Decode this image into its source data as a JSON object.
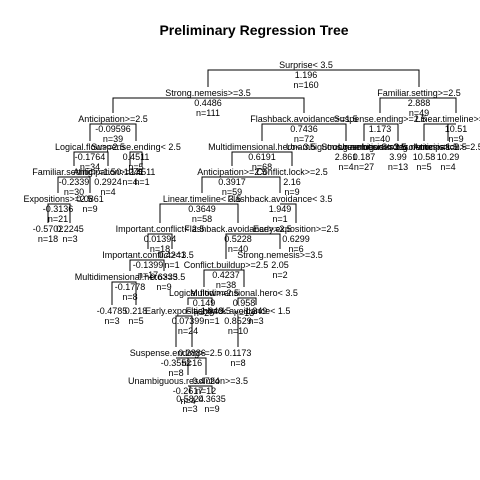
{
  "title": "Preliminary Regression Tree",
  "nodes": [
    {
      "id": "root",
      "split": "Surprise< 3.5",
      "value": "1.196",
      "n": "n=160"
    },
    {
      "id": "n_sn",
      "split": "Strong.nemesis>=3.5",
      "value": "0.4486",
      "n": "n=111"
    },
    {
      "id": "n_fam",
      "split": "Familiar.setting>=2.5",
      "value": "2.888",
      "n": "n=49"
    },
    {
      "id": "n_ant1",
      "split": "Anticipation>=2.5",
      "value": "-0.09596",
      "n": "n=39"
    },
    {
      "id": "n_fb1",
      "split": "Flashback.avoidance>=1.5",
      "value": "0.7436",
      "n": "n=72"
    },
    {
      "id": "n_fam_l",
      "split": "Suspense.ending>=2.5",
      "value": "1.173",
      "n": "n=40"
    },
    {
      "id": "n_fam_r",
      "split": "Linear.timeline>=3.5",
      "value": "10.51",
      "n": "n=9"
    },
    {
      "id": "n_a",
      "split": "Logical.flow>=2.5",
      "value": "-0.1764",
      "n": "n=34"
    },
    {
      "id": "n_b",
      "split": "Suspense.ending< 2.5",
      "value": "0.4511",
      "n": "n=5"
    },
    {
      "id": "n_mf",
      "split": "Multidimensional.hero< 3.5",
      "value": "0.6191",
      "n": "n=68"
    },
    {
      "id": "n_ur",
      "split": "Unambiguous.resolution>=3.5",
      "value": "2.861",
      "n": "n=4"
    },
    {
      "id": "n_c",
      "split": "Strong.nemesis>=2.5",
      "value": "0.187",
      "n": "n=27"
    },
    {
      "id": "n_d",
      "split": "Unambiguous.resolution>=1.5",
      "value": "3.99",
      "n": "n=13"
    },
    {
      "id": "n_e",
      "split": "Strong.nemesis>=2.5",
      "value": "10.58",
      "n": "n=5"
    },
    {
      "id": "n_f",
      "split": "Anticipation>=2.5",
      "value": "10.29",
      "n": "n=4"
    },
    {
      "id": "n_g",
      "split": "Familiar.setting>=1.5",
      "value": "-0.2339",
      "n": "n=30"
    },
    {
      "id": "n_h",
      "split": "Anticipation>=1.5",
      "value": "0.2924",
      "n": "n=4"
    },
    {
      "id": "n_i",
      "split": "",
      "value": "0.1241",
      "n": "n=4"
    },
    {
      "id": "n_j",
      "split": "",
      "value": "0.4511",
      "n": "n=1"
    },
    {
      "id": "n_ant2",
      "split": "Anticipation>=2.5",
      "value": "0.3917",
      "n": "n=59"
    },
    {
      "id": "n_clog",
      "split": "Conflict.lock>=2.5",
      "value": "2.16",
      "n": "n=9"
    },
    {
      "id": "n_exp",
      "split": "Expositions>=2.5",
      "value": "-0.3136",
      "n": "n=21"
    },
    {
      "id": "n_k",
      "split": "",
      "value": "0.0861",
      "n": "n=9"
    },
    {
      "id": "n_lt",
      "split": "Linear.timeline< 3.5",
      "value": "0.3649",
      "n": "n=58"
    },
    {
      "id": "n_fb2",
      "split": "Flashback.avoidance< 3.5",
      "value": "1.949",
      "n": "n=1"
    },
    {
      "id": "n_l",
      "split": "",
      "value": "-0.5702",
      "n": "n=18"
    },
    {
      "id": "n_m",
      "split": "",
      "value": "0.2245",
      "n": "n=3"
    },
    {
      "id": "n_ic",
      "split": "Important.conflict< 2.5",
      "value": "0.01394",
      "n": "n=18"
    },
    {
      "id": "n_fb3",
      "split": "Flashback.avoidance>=2.5",
      "value": "0.5228",
      "n": "n=40"
    },
    {
      "id": "n_eep",
      "split": "Early.exposition>=2.5",
      "value": "0.6299",
      "n": "n=6"
    },
    {
      "id": "n_ic2",
      "split": "Important.conflict>=3.5",
      "value": "-0.1399",
      "n": "n=17"
    },
    {
      "id": "n_n",
      "split": "",
      "value": "0.4241",
      "n": "n=1"
    },
    {
      "id": "n_cb",
      "split": "Conflict.buildup>=2.5",
      "value": "0.4237",
      "n": "n=38"
    },
    {
      "id": "n_o",
      "split": "Strong.nemesis>=3.5",
      "value": "2.05",
      "n": "n=2"
    },
    {
      "id": "n_mh",
      "split": "Multidimensional.hero>=3.5",
      "value": "-0.1778",
      "n": "n=8"
    },
    {
      "id": "n_p",
      "split": "",
      "value": "0.6335",
      "n": "n=9"
    },
    {
      "id": "n_lf",
      "split": "Logical.flow>=2.5",
      "value": "0.149",
      "n": "n=25"
    },
    {
      "id": "n_mh2",
      "split": "Multidimensional.hero< 3.5",
      "value": "0.958",
      "n": "n=13"
    },
    {
      "id": "n_q",
      "split": "",
      "value": "-0.4785",
      "n": "n=3"
    },
    {
      "id": "n_r",
      "split": "",
      "value": "0.218",
      "n": "n=5"
    },
    {
      "id": "n_eex",
      "split": "Early.exposition>=3.5",
      "value": "0.07399",
      "n": "n=24"
    },
    {
      "id": "n_s",
      "split": "",
      "value": "1.949",
      "n": "n=1"
    },
    {
      "id": "n_fb4",
      "split": "Flashback.avoidance< 1.5",
      "value": "0.8529",
      "n": "n=10"
    },
    {
      "id": "n_t",
      "split": "",
      "value": "1.349",
      "n": "n=3"
    },
    {
      "id": "n_se",
      "split": "Suspense.ending>=2.5",
      "value": "-0.3552",
      "n": "n=8"
    },
    {
      "id": "n_u",
      "split": "",
      "value": "0.2886",
      "n": "n=16"
    },
    {
      "id": "n_v",
      "split": "",
      "value": "0.1173",
      "n": "n=8"
    },
    {
      "id": "n_ur2",
      "split": "Unambiguous.resolution>=3.5",
      "value": "-0.2617",
      "n": "n=4"
    },
    {
      "id": "n_w",
      "split": "",
      "value": "0.4724",
      "n": "n=12"
    },
    {
      "id": "n_x",
      "split": "",
      "value": "0.5824",
      "n": "n=3"
    },
    {
      "id": "n_y",
      "split": "",
      "value": "0.3635",
      "n": "n=9"
    }
  ]
}
